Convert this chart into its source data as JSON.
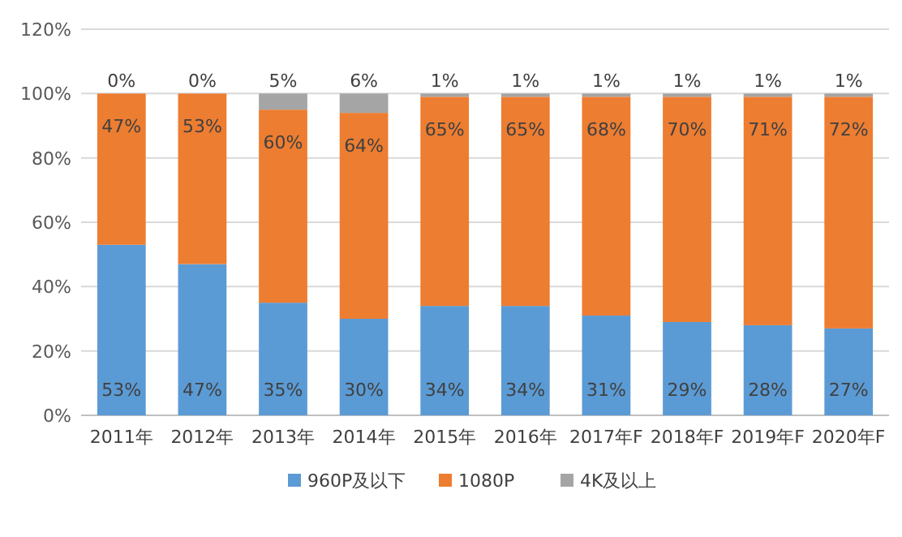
{
  "chart_data": {
    "type": "bar",
    "stacked": true,
    "categories": [
      "2011年",
      "2012年",
      "2013年",
      "2014年",
      "2015年",
      "2016年",
      "2017年F",
      "2018年F",
      "2019年F",
      "2020年F"
    ],
    "series": [
      {
        "name": "960P及以下",
        "color": "#5b9bd5",
        "values": [
          53,
          47,
          35,
          30,
          34,
          34,
          31,
          29,
          28,
          27
        ],
        "value_labels": [
          "53%",
          "47%",
          "35%",
          "30%",
          "34%",
          "34%",
          "31%",
          "29%",
          "28%",
          "27%"
        ]
      },
      {
        "name": "1080P",
        "color": "#ed7d31",
        "values": [
          47,
          53,
          60,
          64,
          65,
          65,
          68,
          70,
          71,
          72
        ],
        "value_labels": [
          "47%",
          "53%",
          "60%",
          "64%",
          "65%",
          "65%",
          "68%",
          "70%",
          "71%",
          "72%"
        ]
      },
      {
        "name": "4K及以上",
        "color": "#a5a5a5",
        "values": [
          0,
          0,
          5,
          6,
          1,
          1,
          1,
          1,
          1,
          1
        ],
        "value_labels": [
          "0%",
          "0%",
          "5%",
          "6%",
          "1%",
          "1%",
          "1%",
          "1%",
          "1%",
          "1%"
        ]
      }
    ],
    "ylim": [
      0,
      120
    ],
    "yticks": [
      {
        "value": 0,
        "label": "0%"
      },
      {
        "value": 20,
        "label": "20%"
      },
      {
        "value": 40,
        "label": "40%"
      },
      {
        "value": 60,
        "label": "60%"
      },
      {
        "value": 80,
        "label": "80%"
      },
      {
        "value": 100,
        "label": "100%"
      },
      {
        "value": 120,
        "label": "120%"
      }
    ],
    "grid": "y",
    "legend": "bottom"
  }
}
